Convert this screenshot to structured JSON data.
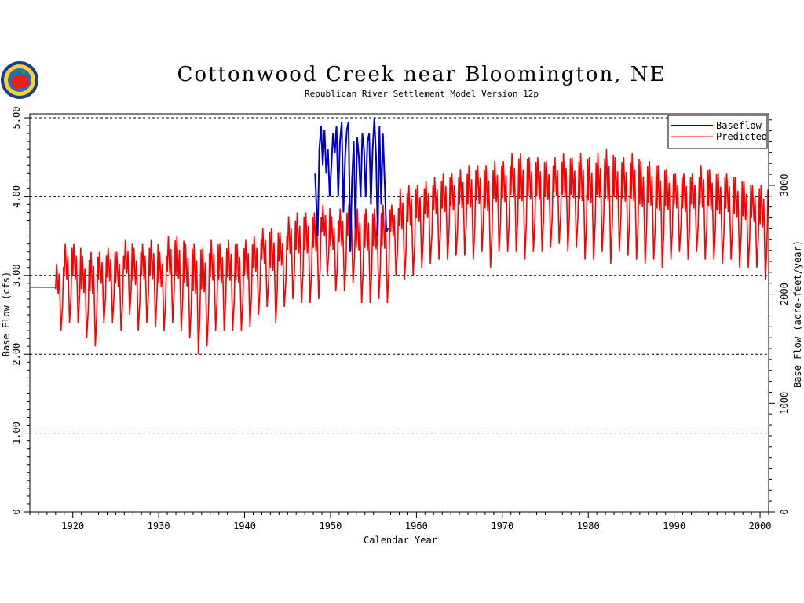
{
  "chart_data": {
    "type": "line",
    "title": "Cottonwood Creek near Bloomington, NE",
    "subtitle": "Republican River Settlement Model Version 12p",
    "xlabel": "Calendar Year",
    "ylabel": "Base Flow (cfs)",
    "y2label": "Base Flow (acre-feet/year)",
    "xlim": [
      1915,
      2001
    ],
    "ylim": [
      0,
      5.05
    ],
    "y2lim": [
      0,
      3656
    ],
    "x_ticks": [
      1920,
      1930,
      1940,
      1950,
      1960,
      1970,
      1980,
      1990,
      2000
    ],
    "y_ticks": [
      0,
      1.0,
      2.0,
      3.0,
      4.0,
      5.0
    ],
    "y_tick_labels": [
      "0",
      "1.00",
      "2.00",
      "3.00",
      "4.00",
      "5.00"
    ],
    "y2_ticks": [
      0,
      1000,
      2000,
      3000
    ],
    "grid": "horizontal dashed at y ticks",
    "legend_position": "top-right",
    "colors": {
      "baseflow": "#0000cc",
      "predicted": "#ff0000"
    },
    "series": [
      {
        "name": "Baseflow",
        "color": "#0000cc",
        "x": [
          1948.2,
          1948.5,
          1948.7,
          1948.9,
          1949.1,
          1949.3,
          1949.5,
          1949.7,
          1949.9,
          1950.1,
          1950.3,
          1950.5,
          1950.7,
          1950.9,
          1951.1,
          1951.3,
          1951.5,
          1951.7,
          1951.9,
          1952.1,
          1952.3,
          1952.5,
          1952.7,
          1952.9,
          1953.1,
          1953.3,
          1953.5,
          1953.7,
          1953.9,
          1954.1,
          1954.3,
          1954.5,
          1954.7,
          1954.9,
          1955.1,
          1955.3,
          1955.5,
          1955.7,
          1955.9,
          1956.1,
          1956.3,
          1956.5,
          1956.7
        ],
        "y": [
          4.3,
          3.5,
          4.6,
          4.9,
          4.4,
          4.85,
          4.3,
          4.6,
          4.0,
          4.4,
          4.8,
          4.55,
          4.9,
          4.0,
          4.7,
          4.95,
          3.8,
          4.5,
          4.85,
          4.95,
          3.3,
          4.2,
          4.7,
          3.6,
          4.75,
          4.5,
          4.0,
          4.8,
          4.6,
          4.0,
          4.7,
          4.8,
          3.9,
          4.6,
          5.0,
          4.5,
          3.5,
          4.9,
          3.9,
          4.8,
          4.2,
          3.55,
          3.6
        ]
      },
      {
        "name": "Predicted",
        "color": "#ff0000",
        "x_start": 1918.0,
        "x_step": 1.0,
        "annual_peaks": [
          3.15,
          3.4,
          3.4,
          3.25,
          3.3,
          3.3,
          3.35,
          3.3,
          3.45,
          3.35,
          3.4,
          3.45,
          3.3,
          3.5,
          3.5,
          3.4,
          3.4,
          3.35,
          3.45,
          3.4,
          3.45,
          3.4,
          3.45,
          3.5,
          3.6,
          3.6,
          3.55,
          3.75,
          3.8,
          3.8,
          3.8,
          3.9,
          3.75,
          3.85,
          3.9,
          3.85,
          3.85,
          3.85,
          3.9,
          3.9,
          4.1,
          4.15,
          4.15,
          4.2,
          4.25,
          4.3,
          4.3,
          4.35,
          4.4,
          4.4,
          4.4,
          4.45,
          4.45,
          4.55,
          4.55,
          4.5,
          4.5,
          4.45,
          4.5,
          4.55,
          4.5,
          4.55,
          4.5,
          4.55,
          4.6,
          4.5,
          4.5,
          4.55,
          4.45,
          4.45,
          4.4,
          4.35,
          4.3,
          4.3,
          4.3,
          4.4,
          4.35,
          4.3,
          4.3,
          4.25,
          4.2,
          4.15,
          4.15
        ],
        "annual_troughs": [
          2.3,
          2.4,
          2.4,
          2.2,
          2.1,
          2.4,
          2.4,
          2.3,
          2.5,
          2.3,
          2.4,
          2.35,
          2.3,
          2.4,
          2.3,
          2.2,
          2.0,
          2.1,
          2.3,
          2.3,
          2.3,
          2.3,
          2.35,
          2.5,
          2.6,
          2.4,
          2.6,
          2.7,
          2.65,
          2.65,
          2.7,
          3.0,
          2.8,
          2.8,
          2.9,
          2.65,
          2.65,
          2.7,
          2.65,
          3.0,
          2.95,
          3.0,
          3.1,
          3.15,
          3.2,
          3.2,
          3.25,
          3.25,
          3.2,
          3.3,
          3.1,
          3.3,
          3.3,
          3.3,
          3.2,
          3.3,
          3.3,
          3.35,
          3.4,
          3.3,
          3.35,
          3.2,
          3.2,
          3.3,
          3.15,
          3.3,
          3.25,
          3.2,
          3.15,
          3.2,
          3.1,
          3.2,
          3.3,
          3.2,
          3.3,
          3.2,
          3.2,
          3.15,
          3.2,
          3.1,
          3.1,
          3.1,
          2.95
        ]
      }
    ]
  },
  "legend": {
    "items": [
      {
        "label": "Baseflow",
        "color": "#0000cc"
      },
      {
        "label": "Predicted",
        "color": "#ff0000"
      }
    ]
  },
  "logo": {
    "icon": "apple-seal-icon"
  }
}
